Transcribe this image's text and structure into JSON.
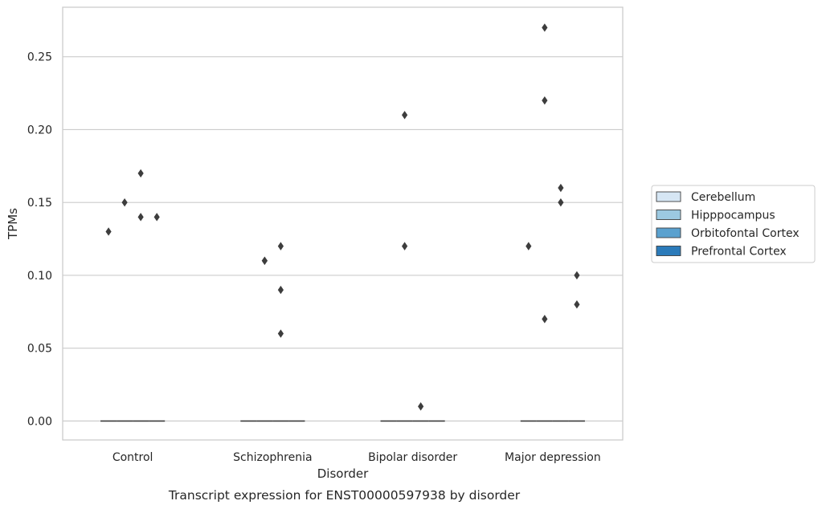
{
  "chart_data": {
    "type": "box",
    "title": "",
    "caption": "Transcript expression for ENST00000597938 by disorder",
    "xlabel": "Disorder",
    "ylabel": "TPMs",
    "ylim": [
      -0.013,
      0.284
    ],
    "yticks": [
      0.0,
      0.05,
      0.1,
      0.15,
      0.2,
      0.25
    ],
    "ytick_labels": [
      "0.00",
      "0.05",
      "0.10",
      "0.15",
      "0.20",
      "0.25"
    ],
    "grid": "horizontal",
    "legend_position": "right",
    "categories": [
      "Control",
      "Schizophrenia",
      "Bipolar disorder",
      "Major depression"
    ],
    "series": [
      {
        "name": "Cerebellum",
        "color": "#d6e6f4",
        "outliers": [
          [
            0.13
          ],
          [],
          [],
          [
            0.12
          ]
        ]
      },
      {
        "name": "Hipppocampus",
        "color": "#9cc9e1",
        "outliers": [
          [
            0.15
          ],
          [
            0.11,
            0.11
          ],
          [
            0.21,
            0.12
          ],
          [
            0.27,
            0.22,
            0.07
          ]
        ]
      },
      {
        "name": "Orbitofontal Cortex",
        "color": "#5aa1cf",
        "outliers": [
          [
            0.17,
            0.14
          ],
          [
            0.12,
            0.09,
            0.06
          ],
          [
            0.01
          ],
          [
            0.16,
            0.15
          ]
        ]
      },
      {
        "name": "Prefrontal Cortex",
        "color": "#2b7bba",
        "outliers": [
          [
            0.14
          ],
          [],
          [],
          [
            0.1,
            0.08
          ]
        ]
      }
    ],
    "marker_color": "#3d3d3d",
    "median_value": 0.0
  }
}
